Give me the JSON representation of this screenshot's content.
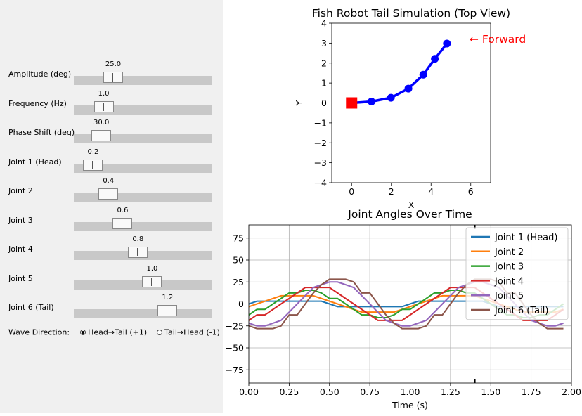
{
  "controls": {
    "sliders": [
      {
        "label": "Amplitude (deg)",
        "value": "25.0",
        "fraction": 0.25
      },
      {
        "label": "Frequency (Hz)",
        "value": "1.0",
        "fraction": 0.17
      },
      {
        "label": "Phase Shift (deg)",
        "value": "30.0",
        "fraction": 0.15
      },
      {
        "label": "Joint 1 (Head)",
        "value": "0.2",
        "fraction": 0.08
      },
      {
        "label": "Joint 2",
        "value": "0.4",
        "fraction": 0.21
      },
      {
        "label": "Joint 3",
        "value": "0.6",
        "fraction": 0.33
      },
      {
        "label": "Joint 4",
        "value": "0.8",
        "fraction": 0.46
      },
      {
        "label": "Joint 5",
        "value": "1.0",
        "fraction": 0.58
      },
      {
        "label": "Joint 6 (Tail)",
        "value": "1.2",
        "fraction": 0.71
      }
    ],
    "wave_direction": {
      "label": "Wave Direction:",
      "options": [
        "Head→Tail (+1)",
        "Tail→Head (-1)"
      ],
      "selected": 0
    }
  },
  "chart_data": [
    {
      "type": "line",
      "title": "Fish Robot Tail Simulation (Top View)",
      "xlabel": "X",
      "ylabel": "Y",
      "xlim": [
        -1,
        7
      ],
      "ylim": [
        -4,
        4
      ],
      "xticks": [
        0,
        2,
        4,
        6
      ],
      "yticks": [
        -4,
        -3,
        -2,
        -1,
        0,
        1,
        2,
        3,
        4
      ],
      "grid": false,
      "annotation": "← Forward",
      "annotation_color": "#ff0000",
      "series": [
        {
          "color": "#0000ff",
          "x": [
            0,
            1,
            1.98,
            2.86,
            3.61,
            4.19,
            4.8
          ],
          "y": [
            0,
            0.07,
            0.26,
            0.72,
            1.42,
            2.21,
            2.98
          ]
        }
      ],
      "head": {
        "x": 0,
        "y": 0,
        "color": "#ff0000"
      }
    },
    {
      "type": "line",
      "title": "Joint Angles Over Time",
      "xlabel": "Time (s)",
      "ylabel": "",
      "xlim": [
        0,
        2
      ],
      "ylim": [
        -90,
        90
      ],
      "xticks": [
        "0.00",
        "0.25",
        "0.50",
        "0.75",
        "1.00",
        "1.25",
        "1.50",
        "1.75",
        "2.00"
      ],
      "yticks": [
        -75,
        -50,
        -25,
        0,
        25,
        50,
        75
      ],
      "grid": true,
      "legend": "top-right",
      "marker_x": 1.4,
      "x": [
        0.0,
        0.05,
        0.1,
        0.15,
        0.2,
        0.25,
        0.3,
        0.35,
        0.4,
        0.45,
        0.5,
        0.55,
        0.6,
        0.65,
        0.7,
        0.75,
        0.8,
        0.85,
        0.9,
        0.95,
        1.0,
        1.05,
        1.1,
        1.15,
        1.2,
        1.25,
        1.3,
        1.35,
        1.4,
        1.45,
        1.5,
        1.55,
        1.6,
        1.65,
        1.7,
        1.75,
        1.8,
        1.85,
        1.9,
        1.95
      ],
      "series": [
        {
          "name": "Joint 1 (Head)",
          "color": "#1f77b4",
          "values": [
            0.0,
            3.1,
            3.1,
            3.1,
            3.1,
            3.1,
            3.1,
            3.1,
            3.1,
            3.1,
            0.0,
            -3.1,
            -3.1,
            -3.1,
            -3.1,
            -3.1,
            -3.1,
            -3.1,
            -3.1,
            -3.1,
            0.0,
            3.1,
            3.1,
            3.1,
            3.1,
            3.1,
            3.1,
            3.1,
            3.1,
            3.1,
            0.0,
            -3.1,
            -3.1,
            -3.1,
            -3.1,
            -3.1,
            -3.1,
            -3.1,
            -3.1,
            -3.1
          ]
        },
        {
          "name": "Joint 2",
          "color": "#ff7f0e",
          "values": [
            -3.1,
            0.0,
            3.1,
            6.2,
            9.3,
            9.3,
            9.3,
            9.3,
            9.3,
            6.2,
            3.1,
            0.0,
            -3.1,
            -6.2,
            -9.3,
            -9.3,
            -9.3,
            -9.3,
            -9.3,
            -6.2,
            -3.1,
            0.0,
            3.1,
            6.2,
            9.3,
            9.3,
            9.3,
            9.3,
            9.3,
            6.2,
            3.1,
            0.0,
            -3.1,
            -6.2,
            -9.3,
            -9.3,
            -9.3,
            -9.3,
            -9.3,
            -6.2
          ]
        },
        {
          "name": "Joint 3",
          "color": "#2ca02c",
          "values": [
            -12.5,
            -6.2,
            -6.2,
            0.0,
            6.2,
            12.5,
            12.5,
            15.6,
            15.6,
            12.5,
            6.2,
            6.2,
            0.0,
            -6.2,
            -12.5,
            -12.5,
            -15.6,
            -15.6,
            -12.5,
            -6.2,
            -6.2,
            0.0,
            6.2,
            12.5,
            12.5,
            15.6,
            15.6,
            12.5,
            12.5,
            6.2,
            0.0,
            -6.2,
            -12.5,
            -12.5,
            -15.6,
            -15.6,
            -12.5,
            -12.5,
            -6.2,
            0.0
          ]
        },
        {
          "name": "Joint 4",
          "color": "#d62728",
          "values": [
            -18.7,
            -12.5,
            -12.5,
            -6.2,
            0.0,
            6.2,
            12.5,
            18.7,
            18.7,
            18.7,
            18.7,
            12.5,
            6.2,
            0.0,
            -6.2,
            -12.5,
            -18.7,
            -18.7,
            -18.7,
            -18.7,
            -12.5,
            -6.2,
            0.0,
            6.2,
            12.5,
            18.7,
            18.7,
            18.7,
            18.7,
            12.5,
            6.2,
            0.0,
            -6.2,
            -12.5,
            -18.7,
            -18.7,
            -18.7,
            -18.7,
            -12.5,
            -6.2
          ]
        },
        {
          "name": "Joint 5",
          "color": "#9467bd",
          "values": [
            -21.9,
            -25.0,
            -25.0,
            -21.9,
            -18.7,
            -9.4,
            0.0,
            9.4,
            18.7,
            21.9,
            25.0,
            25.0,
            21.9,
            18.7,
            9.4,
            0.0,
            -9.4,
            -18.7,
            -21.9,
            -25.0,
            -25.0,
            -21.9,
            -18.7,
            -9.4,
            0.0,
            9.4,
            18.7,
            21.9,
            25.0,
            25.0,
            21.9,
            18.7,
            9.4,
            0.0,
            -9.4,
            -18.7,
            -21.9,
            -25.0,
            -25.0,
            -21.9
          ]
        },
        {
          "name": "Joint 6 (Tail)",
          "color": "#8c564b",
          "values": [
            -25.0,
            -28.1,
            -28.1,
            -28.1,
            -25.0,
            -12.5,
            -12.5,
            0.0,
            12.5,
            21.9,
            28.1,
            28.1,
            28.1,
            25.0,
            12.5,
            12.5,
            0.0,
            -12.5,
            -21.9,
            -28.1,
            -28.1,
            -28.1,
            -25.0,
            -12.5,
            -12.5,
            0.0,
            12.5,
            21.9,
            28.1,
            28.1,
            28.1,
            25.0,
            12.5,
            12.5,
            0.0,
            -12.5,
            -21.9,
            -28.1,
            -28.1,
            -28.1
          ]
        }
      ]
    }
  ]
}
